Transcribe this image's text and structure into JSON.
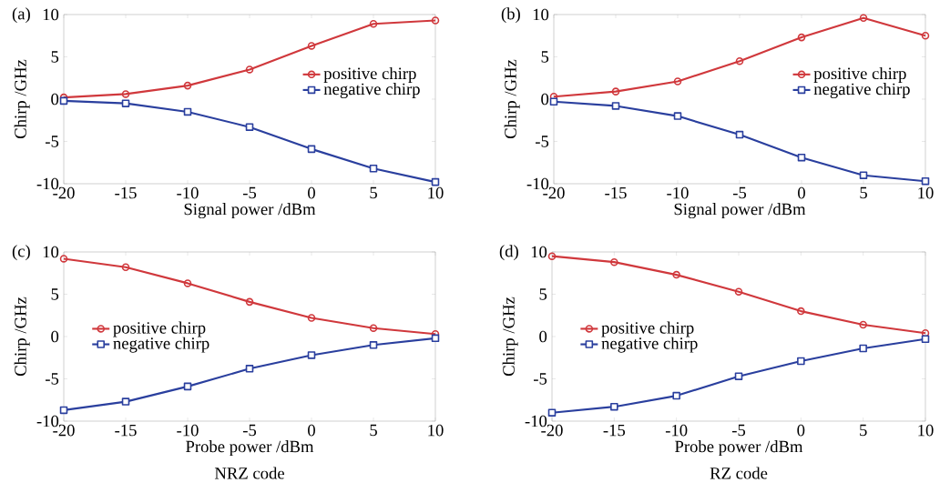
{
  "chart_data": [
    {
      "type": "line",
      "title": "(a)",
      "xlabel": "Signal power /dBm",
      "ylabel": "Chirp /GHz",
      "legend": "right",
      "x": [
        -20,
        -15,
        -10,
        -5,
        0,
        5,
        10
      ],
      "xlim": [
        -20,
        10
      ],
      "ylim": [
        -10,
        10
      ],
      "xticks": [
        -20,
        -15,
        -10,
        -5,
        0,
        5,
        10
      ],
      "yticks": [
        -10,
        -5,
        0,
        5,
        10
      ],
      "series": [
        {
          "name": "positive chirp",
          "color": "#d0383c",
          "marker": "circle",
          "values": [
            0.2,
            0.6,
            1.6,
            3.5,
            6.3,
            8.9,
            9.3
          ]
        },
        {
          "name": "negative chirp",
          "color": "#2a3f9e",
          "marker": "square",
          "values": [
            -0.2,
            -0.5,
            -1.5,
            -3.3,
            -5.9,
            -8.2,
            -9.8
          ]
        }
      ]
    },
    {
      "type": "line",
      "title": "(b)",
      "xlabel": "Signal power /dBm",
      "ylabel": "Chirp /GHz",
      "legend": "right",
      "x": [
        -20,
        -15,
        -10,
        -5,
        0,
        5,
        10
      ],
      "xlim": [
        -20,
        10
      ],
      "ylim": [
        -10,
        10
      ],
      "xticks": [
        -20,
        -15,
        -10,
        -5,
        0,
        5,
        10
      ],
      "yticks": [
        -10,
        -5,
        0,
        5,
        10
      ],
      "series": [
        {
          "name": "positive chirp",
          "color": "#d0383c",
          "marker": "circle",
          "values": [
            0.3,
            0.9,
            2.1,
            4.5,
            7.3,
            9.6,
            7.5
          ]
        },
        {
          "name": "negative chirp",
          "color": "#2a3f9e",
          "marker": "square",
          "values": [
            -0.3,
            -0.8,
            -2.0,
            -4.2,
            -6.9,
            -9.0,
            -9.7
          ]
        }
      ]
    },
    {
      "type": "line",
      "title": "(c)",
      "xlabel": "Probe power /dBm",
      "ylabel": "Chirp /GHz",
      "legend": "left",
      "annotations": [
        "NRZ code"
      ],
      "x": [
        -20,
        -15,
        -10,
        -5,
        0,
        5,
        10
      ],
      "xlim": [
        -20,
        10
      ],
      "ylim": [
        -10,
        10
      ],
      "xticks": [
        -20,
        -15,
        -10,
        -5,
        0,
        5,
        10
      ],
      "yticks": [
        -10,
        -5,
        0,
        5,
        10
      ],
      "series": [
        {
          "name": "positive chirp",
          "color": "#d0383c",
          "marker": "circle",
          "values": [
            9.2,
            8.2,
            6.3,
            4.1,
            2.2,
            1.0,
            0.3
          ]
        },
        {
          "name": "negative chirp",
          "color": "#2a3f9e",
          "marker": "square",
          "values": [
            -8.7,
            -7.7,
            -5.9,
            -3.8,
            -2.2,
            -1.0,
            -0.2
          ]
        }
      ]
    },
    {
      "type": "line",
      "title": "(d)",
      "xlabel": "Probe power /dBm",
      "ylabel": "Chirp /GHz",
      "legend": "left",
      "annotations": [
        "RZ code"
      ],
      "x": [
        -20,
        -15,
        -10,
        -5,
        0,
        5,
        10
      ],
      "xlim": [
        -20,
        10
      ],
      "ylim": [
        -10,
        10
      ],
      "xticks": [
        -20,
        -15,
        -10,
        -5,
        0,
        5,
        10
      ],
      "yticks": [
        -10,
        -5,
        0,
        5,
        10
      ],
      "series": [
        {
          "name": "positive chirp",
          "color": "#d0383c",
          "marker": "circle",
          "values": [
            9.5,
            8.8,
            7.3,
            5.3,
            3.0,
            1.4,
            0.4
          ]
        },
        {
          "name": "negative chirp",
          "color": "#2a3f9e",
          "marker": "square",
          "values": [
            -9.0,
            -8.3,
            -7.0,
            -4.7,
            -2.9,
            -1.4,
            -0.3
          ]
        }
      ]
    }
  ]
}
